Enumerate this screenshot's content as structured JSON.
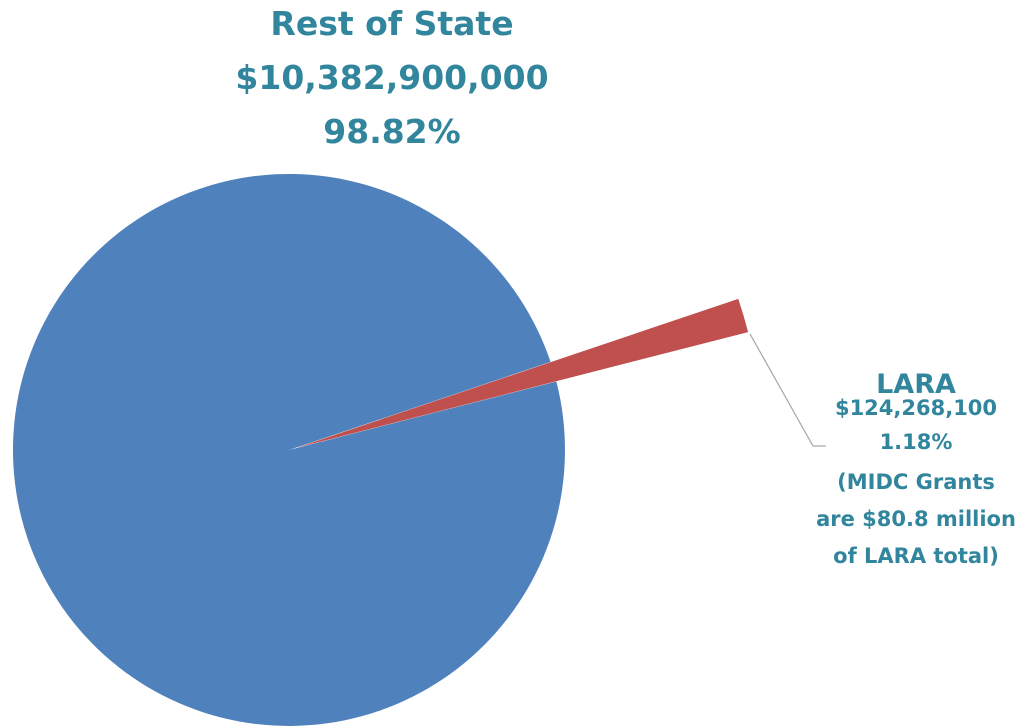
{
  "colors": {
    "label_text": "#31859C",
    "rest_of_state_slice": "#4F81BD",
    "lara_slice": "#C0504D",
    "leader_line": "#A6A6A6",
    "background": "#FFFFFF"
  },
  "chart_data": {
    "type": "pie",
    "title": "",
    "slices": [
      {
        "name": "Rest of State",
        "value": 10382900000,
        "value_label": "$10,382,900,000",
        "percent": 98.82,
        "percent_label": "98.82%",
        "color": "#4F81BD"
      },
      {
        "name": "LARA",
        "value": 124268100,
        "value_label": "$124,268,100",
        "percent": 1.18,
        "percent_label": "1.18%",
        "color": "#C0504D",
        "exploded": true,
        "note_lines": [
          "(MIDC Grants",
          "are $80.8 million",
          "of LARA total)"
        ]
      }
    ],
    "legend": "none",
    "data_labels": "outside, with leader line for LARA"
  }
}
